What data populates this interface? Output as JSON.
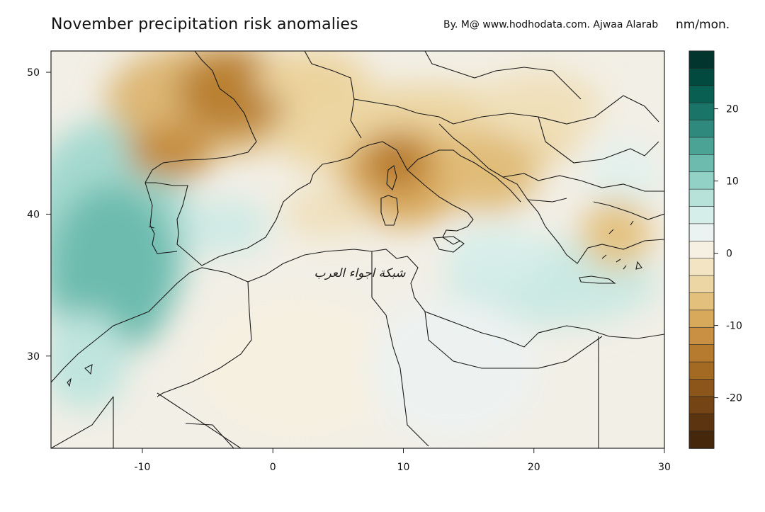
{
  "header": {
    "title": "November precipitation risk anomalies",
    "credit": "By. M@ www.hodhodata.com. Ajwaa Alarab",
    "units": "nm/mon."
  },
  "watermark": "شبكة اجواء العرب",
  "map": {
    "lon_range": [
      -17,
      30
    ],
    "lat_range": [
      23.5,
      51.5
    ],
    "x_ticks": [
      "-10",
      "0",
      "10",
      "20",
      "30"
    ],
    "y_ticks": [
      "50",
      "40",
      "30"
    ]
  },
  "colorbar": {
    "tick_labels": [
      "20",
      "10",
      "0",
      "-10",
      "-20"
    ],
    "colors_top_to_bottom": [
      "#01352d",
      "#024a40",
      "#0a5f53",
      "#1a7467",
      "#2f8a7d",
      "#4aa395",
      "#6dbbaf",
      "#92d1c6",
      "#b6e2da",
      "#d6eeea",
      "#eaf3f1",
      "#f5f0e2",
      "#f3e5c3",
      "#ecd6a3",
      "#e3c07c",
      "#d8a85b",
      "#c99043",
      "#b77b2f",
      "#a36a23",
      "#8c561a",
      "#744414",
      "#5c340f",
      "#45270b"
    ],
    "range": [
      -27,
      28
    ]
  }
}
